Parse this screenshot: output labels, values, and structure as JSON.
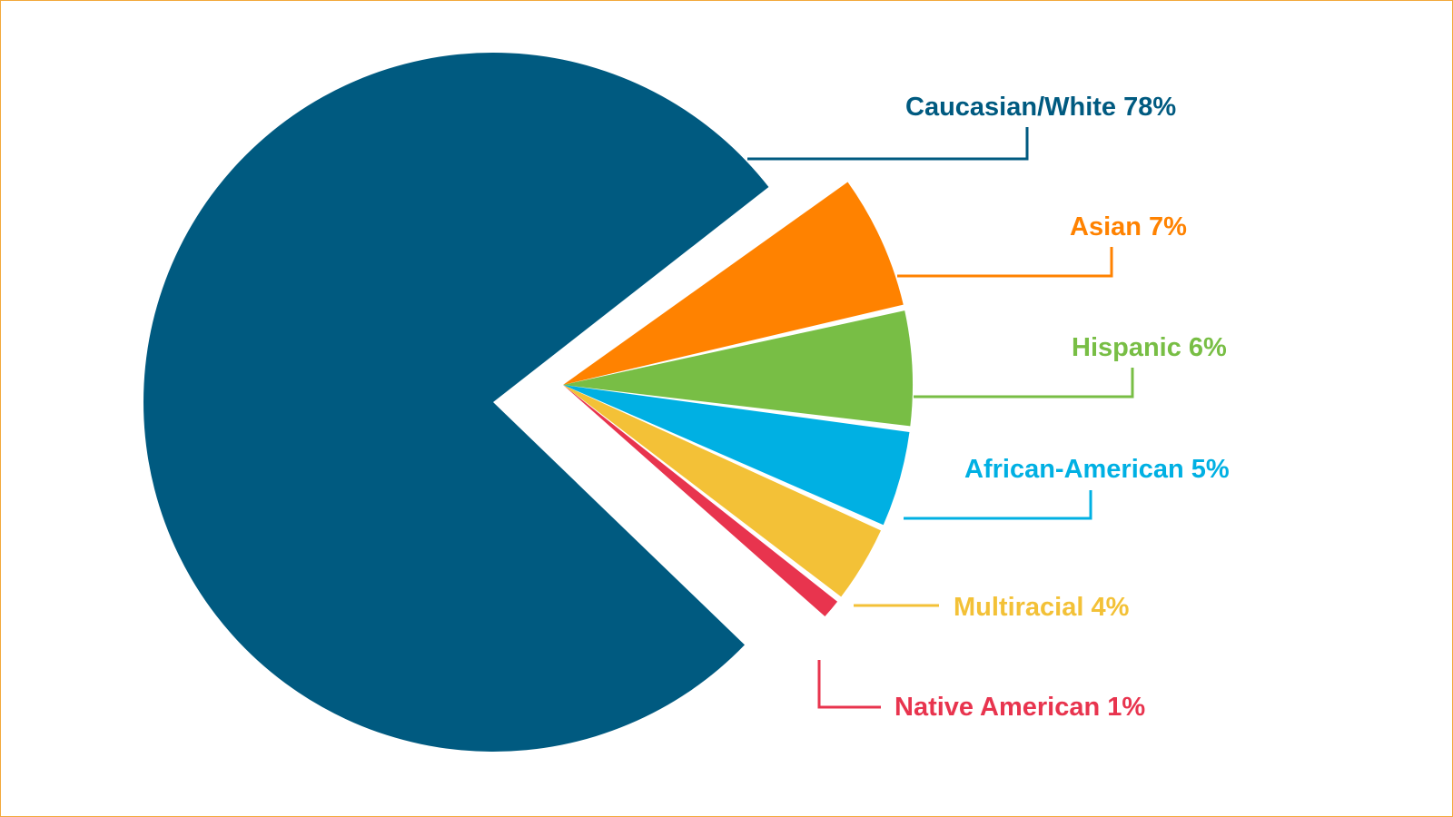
{
  "chart_data": {
    "type": "pie",
    "slices": [
      {
        "label": "Caucasian/White 78%",
        "value": 78,
        "color": "#005a80"
      },
      {
        "label": "Asian 7%",
        "value": 7,
        "color": "#ff8200"
      },
      {
        "label": "Hispanic 6%",
        "value": 6,
        "color": "#78be45"
      },
      {
        "label": "African-American 5%",
        "value": 5,
        "color": "#00b0e3"
      },
      {
        "label": "Multiracial 4%",
        "value": 4,
        "color": "#f3c137"
      },
      {
        "label": "Native American 1%",
        "value": 1,
        "color": "#e8344e"
      }
    ],
    "legend": "none",
    "grid": false
  },
  "colors": {
    "frame_border": "#f2a93b",
    "background": "#ffffff"
  }
}
